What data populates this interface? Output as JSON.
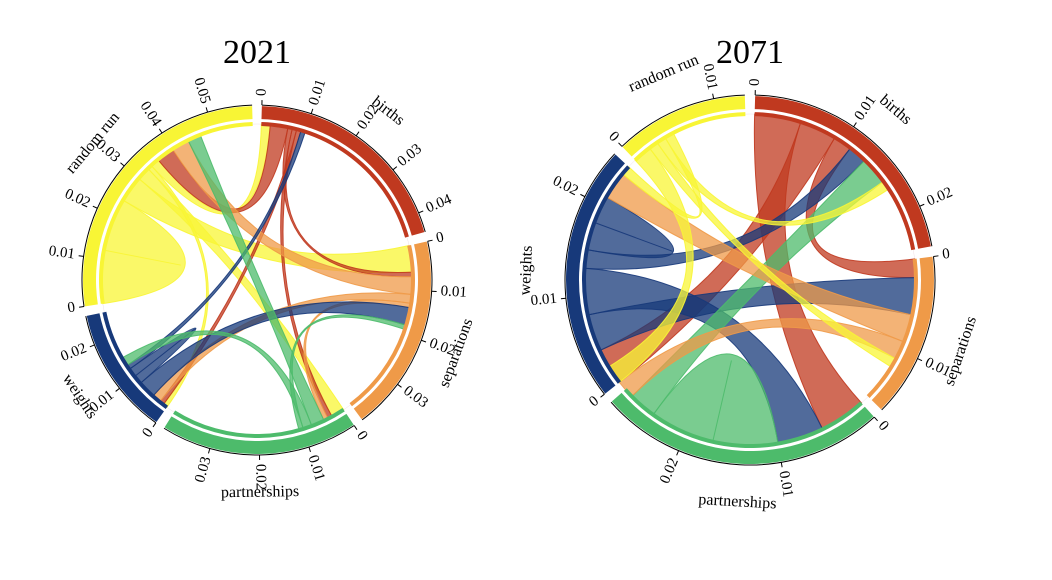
{
  "chart_data": [
    {
      "type": "chord",
      "title": "2021",
      "groups": [
        {
          "name": "births",
          "color": "#c0391f",
          "total": 0.044,
          "ticks": [
            "0",
            "0.01",
            "0.02",
            "0.03",
            "0.04"
          ],
          "tick_values": [
            0,
            0.01,
            0.02,
            0.03,
            0.04
          ]
        },
        {
          "name": "separations",
          "color": "#ef9a48",
          "total": 0.04,
          "ticks": [
            "0",
            "0.01",
            "0.02",
            "0.03"
          ],
          "tick_values": [
            0,
            0.01,
            0.02,
            0.03
          ]
        },
        {
          "name": "partnerships",
          "color": "#4dbb6b",
          "total": 0.04,
          "ticks": [
            "0",
            "0.01",
            "0.02",
            "0.03"
          ],
          "tick_values": [
            0,
            0.01,
            0.02,
            0.03
          ]
        },
        {
          "name": "weights",
          "color": "#17397a",
          "total": 0.026,
          "ticks": [
            "0",
            "0.01",
            "0.02"
          ],
          "tick_values": [
            0,
            0.01,
            0.02
          ]
        },
        {
          "name": "random run",
          "color": "#f8f535",
          "total": 0.059,
          "ticks": [
            "0",
            "0.01",
            "0.02",
            "0.03",
            "0.04",
            "0.05"
          ],
          "tick_values": [
            0,
            0.01,
            0.02,
            0.03,
            0.04,
            0.05
          ]
        }
      ],
      "chords": [
        {
          "source": "random run",
          "target": "random run",
          "value": 0.012
        },
        {
          "source": "random run",
          "target": "separations",
          "value": 0.006
        },
        {
          "source": "random run",
          "target": "partnerships",
          "value": 0.003
        },
        {
          "source": "random run",
          "target": "weights",
          "value": 0.001
        },
        {
          "source": "random run",
          "target": "births",
          "value": 0.002
        },
        {
          "source": "births",
          "target": "random run",
          "value": 0.004
        },
        {
          "source": "births",
          "target": "separations",
          "value": 0.001
        },
        {
          "source": "births",
          "target": "partnerships",
          "value": 0.001
        },
        {
          "source": "births",
          "target": "weights",
          "value": 0.001
        },
        {
          "source": "separations",
          "target": "random run",
          "value": 0.004
        },
        {
          "source": "separations",
          "target": "weights",
          "value": 0.002
        },
        {
          "source": "separations",
          "target": "partnerships",
          "value": 0.001
        },
        {
          "source": "weights",
          "target": "separations",
          "value": 0.004
        },
        {
          "source": "weights",
          "target": "weights",
          "value": 0.002
        },
        {
          "source": "weights",
          "target": "births",
          "value": 0.001
        },
        {
          "source": "partnerships",
          "target": "random run",
          "value": 0.003
        },
        {
          "source": "partnerships",
          "target": "weights",
          "value": 0.002
        },
        {
          "source": "partnerships",
          "target": "separations",
          "value": 0.001
        }
      ]
    },
    {
      "type": "chord",
      "title": "2071",
      "groups": [
        {
          "name": "births",
          "color": "#c0391f",
          "total": 0.024,
          "ticks": [
            "0",
            "0.01",
            "0.02"
          ],
          "tick_values": [
            0,
            0.01,
            0.02
          ]
        },
        {
          "name": "separations",
          "color": "#ef9a48",
          "total": 0.016,
          "ticks": [
            "0",
            "0.01"
          ],
          "tick_values": [
            0,
            0.01
          ]
        },
        {
          "name": "partnerships",
          "color": "#4dbb6b",
          "total": 0.028,
          "ticks": [
            "0",
            "0.01",
            "0.02"
          ],
          "tick_values": [
            0,
            0.01,
            0.02
          ]
        },
        {
          "name": "weights",
          "color": "#17397a",
          "total": 0.025,
          "ticks": [
            "0",
            "0.01",
            "0.02"
          ],
          "tick_values": [
            0,
            0.01,
            0.02
          ]
        },
        {
          "name": "random run",
          "color": "#f8f535",
          "total": 0.013,
          "ticks": [
            "0",
            "0.01"
          ],
          "tick_values": [
            0,
            0.01
          ]
        }
      ],
      "chords": [
        {
          "source": "births",
          "target": "partnerships",
          "value": 0.005
        },
        {
          "source": "births",
          "target": "weights",
          "value": 0.004
        },
        {
          "source": "births",
          "target": "separations",
          "value": 0.002
        },
        {
          "source": "weights",
          "target": "separations",
          "value": 0.004
        },
        {
          "source": "weights",
          "target": "partnerships",
          "value": 0.005
        },
        {
          "source": "weights",
          "target": "births",
          "value": 0.002
        },
        {
          "source": "weights",
          "target": "weights",
          "value": 0.003
        },
        {
          "source": "partnerships",
          "target": "partnerships",
          "value": 0.007
        },
        {
          "source": "partnerships",
          "target": "births",
          "value": 0.003
        },
        {
          "source": "separations",
          "target": "weights",
          "value": 0.003
        },
        {
          "source": "separations",
          "target": "partnerships",
          "value": 0.002
        },
        {
          "source": "random run",
          "target": "partnerships",
          "value": 0.002
        },
        {
          "source": "random run",
          "target": "separations",
          "value": 0.001
        },
        {
          "source": "random run",
          "target": "births",
          "value": 0.001
        },
        {
          "source": "random run",
          "target": "weights",
          "value": 0.001
        }
      ]
    }
  ]
}
